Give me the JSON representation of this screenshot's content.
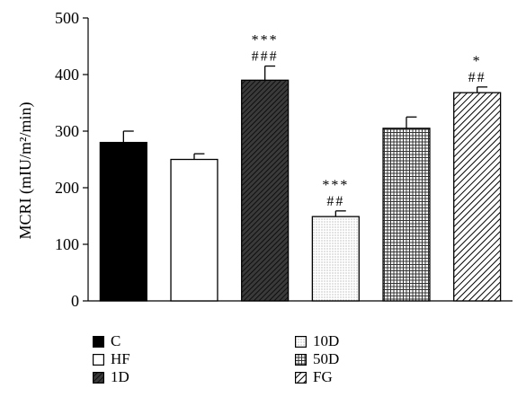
{
  "chart_data": {
    "type": "bar",
    "title": "",
    "xlabel": "",
    "ylabel": "MCRI (mIU/m²/min)",
    "ylim": [
      0,
      500
    ],
    "yticks": [
      0,
      100,
      200,
      300,
      400,
      500
    ],
    "grid": false,
    "legend_position": "bottom",
    "categories": [
      "C",
      "HF",
      "1D",
      "10D",
      "50D",
      "FG"
    ],
    "values": [
      280,
      250,
      390,
      149,
      305,
      368
    ],
    "errors": [
      20,
      10,
      25,
      10,
      20,
      10
    ],
    "fills": [
      "solid-black",
      "white",
      "dark-diagonal-lines",
      "light-dotted",
      "grid-crosshatch",
      "diagonal-stripes"
    ],
    "annotations": [
      {
        "category": "1D",
        "lines": [
          "***",
          "###"
        ]
      },
      {
        "category": "10D",
        "lines": [
          "***",
          "##"
        ]
      },
      {
        "category": "FG",
        "lines": [
          "*",
          "##"
        ]
      }
    ],
    "legend": {
      "col1": [
        "C",
        "HF",
        "1D"
      ],
      "col2": [
        "10D",
        "50D",
        "FG"
      ]
    }
  }
}
